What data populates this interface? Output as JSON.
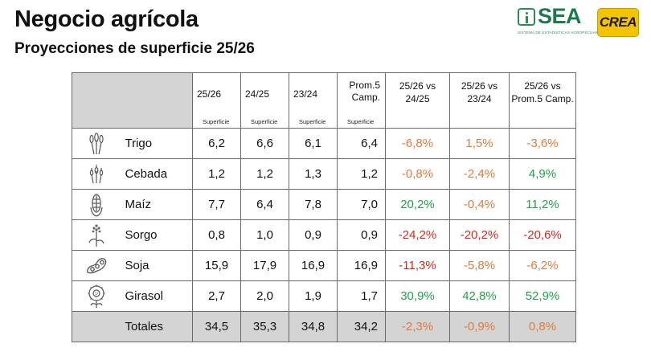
{
  "title": "Negocio agrícola",
  "subtitle": "Proyecciones de superficie 25/26",
  "logos": {
    "sea_text": "SEA",
    "sea_tagline": "SISTEMA DE ESTADÍSTICAS AGROPECUARIAS",
    "crea_text": "CREA"
  },
  "colors": {
    "orange": "#e07b39",
    "green": "#1fa34a",
    "red": "#d9261c",
    "header_gray": "#d4d4d4"
  },
  "table": {
    "headers": {
      "y2526": "25/26",
      "y2425": "24/25",
      "y2324": "23/24",
      "prom": "Prom.5 Camp.",
      "sub": "Superficie",
      "c1": "25/26 vs 24/25",
      "c2": "25/26 vs 23/24",
      "c3": "25/26 vs Prom.5 Camp."
    },
    "rows": [
      {
        "crop": "Trigo",
        "icon": "wheat-icon",
        "v1": "6,2",
        "v2": "6,6",
        "v3": "6,1",
        "v4": "6,4",
        "p1": "-6,8%",
        "p2": "1,5%",
        "p3": "-3,6%"
      },
      {
        "crop": "Cebada",
        "icon": "barley-icon",
        "v1": "1,2",
        "v2": "1,2",
        "v3": "1,3",
        "v4": "1,2",
        "p1": "-0,8%",
        "p2": "-2,4%",
        "p3": "4,9%"
      },
      {
        "crop": "Maíz",
        "icon": "corn-icon",
        "v1": "7,7",
        "v2": "6,4",
        "v3": "7,8",
        "v4": "7,0",
        "p1": "20,2%",
        "p2": "-0,4%",
        "p3": "11,2%"
      },
      {
        "crop": "Sorgo",
        "icon": "sorghum-icon",
        "v1": "0,8",
        "v2": "1,0",
        "v3": "0,9",
        "v4": "0,9",
        "p1": "-24,2%",
        "p2": "-20,2%",
        "p3": "-20,6%"
      },
      {
        "crop": "Soja",
        "icon": "soybean-icon",
        "v1": "15,9",
        "v2": "17,9",
        "v3": "16,9",
        "v4": "16,9",
        "p1": "-11,3%",
        "p2": "-5,8%",
        "p3": "-6,2%"
      },
      {
        "crop": "Girasol",
        "icon": "sunflower-icon",
        "v1": "2,7",
        "v2": "2,0",
        "v3": "1,9",
        "v4": "1,7",
        "p1": "30,9%",
        "p2": "42,8%",
        "p3": "52,9%"
      }
    ],
    "totals": {
      "label": "Totales",
      "v1": "34,5",
      "v2": "35,3",
      "v3": "34,8",
      "v4": "34,2",
      "p1": "-2,3%",
      "p2": "-0,9%",
      "p3": "0,8%"
    }
  }
}
